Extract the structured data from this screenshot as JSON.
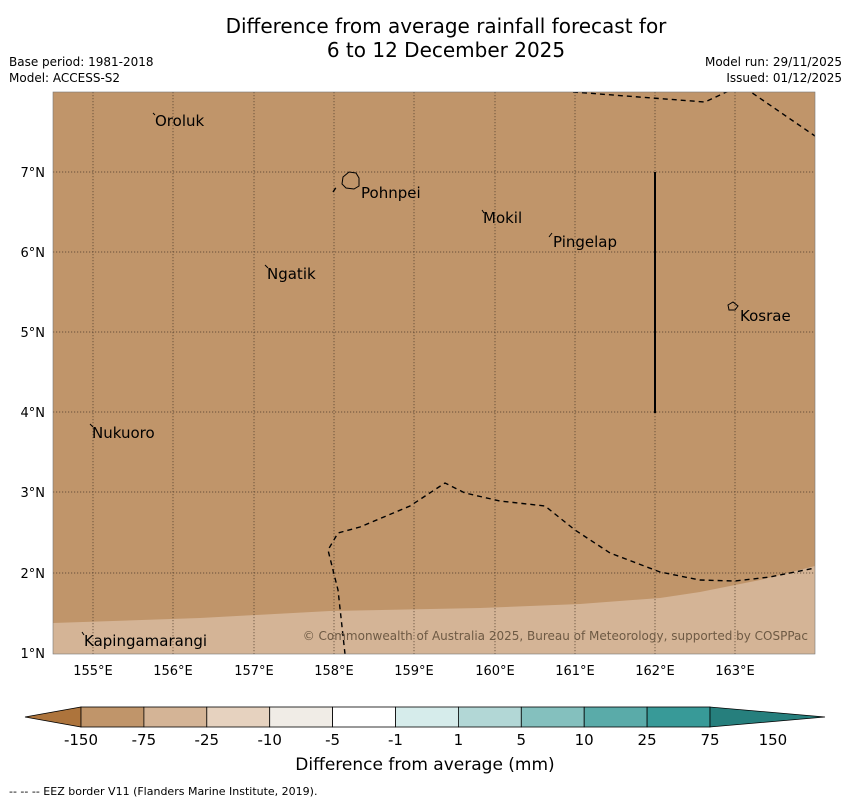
{
  "header": {
    "title_line1": "Difference from average rainfall forecast for",
    "title_line2": "6 to 12 December 2025",
    "base_period": "Base period: 1981-2018",
    "model": "Model: ACCESS-S2",
    "model_run": "Model run: 29/11/2025",
    "issued": "Issued: 01/12/2025"
  },
  "map": {
    "lon_ticks": [
      "155°E",
      "156°E",
      "157°E",
      "158°E",
      "159°E",
      "160°E",
      "161°E",
      "162°E",
      "163°E"
    ],
    "lat_ticks": [
      "7°N",
      "6°N",
      "5°N",
      "4°N",
      "3°N",
      "2°N",
      "1°N"
    ],
    "places": [
      {
        "name": "Oroluk"
      },
      {
        "name": "Pohnpei"
      },
      {
        "name": "Mokil"
      },
      {
        "name": "Pingelap"
      },
      {
        "name": "Ngatik"
      },
      {
        "name": "Kosrae"
      },
      {
        "name": "Nukuoro"
      },
      {
        "name": "Kapingamarangi"
      }
    ],
    "copyright": "© Commonwealth of Australia 2025, Bureau of Meteorology, supported by COSPPac",
    "background_color": "#c0956a",
    "light_band_color": "#d4b496"
  },
  "colorbar": {
    "colors": [
      "#ad743c",
      "#c0956a",
      "#d4b496",
      "#e6d2bf",
      "#f0ece6",
      "#ffffff",
      "#d6eceb",
      "#b2d7d6",
      "#84c0be",
      "#5aaba9",
      "#389a98",
      "#267f7d"
    ],
    "ticks": [
      "-150",
      "-75",
      "-25",
      "-10",
      "-5",
      "-1",
      "1",
      "5",
      "10",
      "25",
      "75",
      "150"
    ],
    "label": "Difference from average (mm)"
  },
  "footnote": "--  --  -- EEZ border V11 (Flanders Marine Institute, 2019)."
}
